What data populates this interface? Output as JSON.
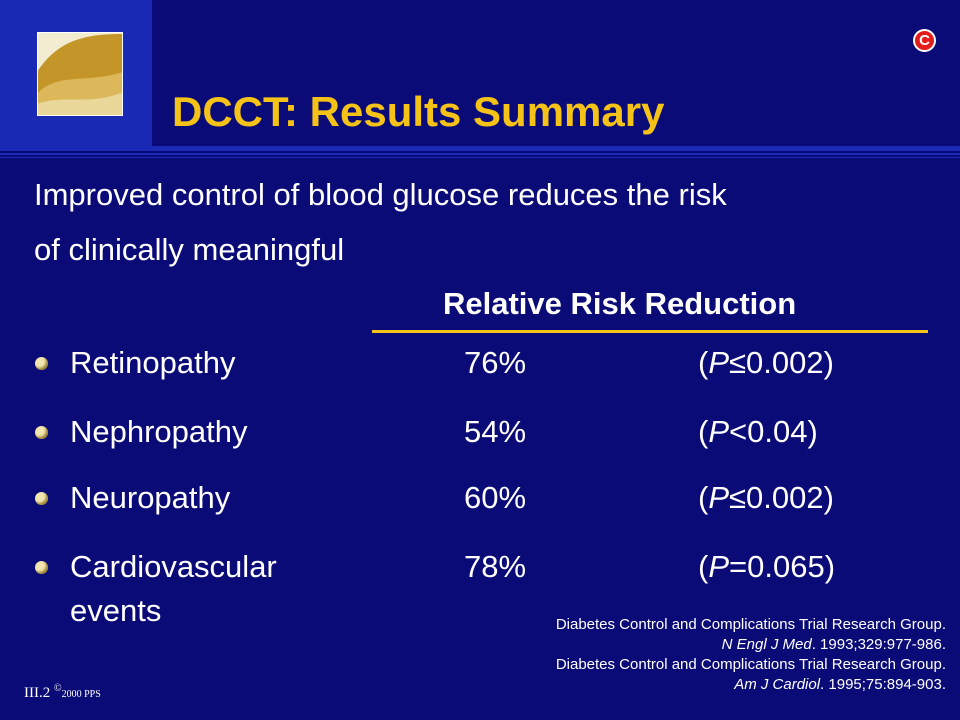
{
  "title": "DCCT: Results Summary",
  "badge": "C",
  "intro": {
    "line1": "Improved control of blood glucose reduces the risk",
    "line2": "of clinically meaningful"
  },
  "column_header": "Relative Risk Reduction",
  "rows": [
    {
      "label": "Retinopathy",
      "label2": "",
      "reduction": "76%",
      "p_open": "(",
      "p_letter": "P",
      "p_rest": "≤0.002)"
    },
    {
      "label": "Nephropathy",
      "label2": "",
      "reduction": "54%",
      "p_open": "(",
      "p_letter": "P",
      "p_rest": "<0.04)"
    },
    {
      "label": "Neuropathy",
      "label2": "",
      "reduction": "60%",
      "p_open": "(",
      "p_letter": "P",
      "p_rest": "≤0.002)"
    },
    {
      "label": "Cardiovascular",
      "label2": "events",
      "reduction": "78%",
      "p_open": "(",
      "p_letter": "P",
      "p_rest": "=0.065)"
    }
  ],
  "references": [
    {
      "line1": "Diabetes Control and Complications Trial Research Group.",
      "journal": "N Engl J Med",
      "citation": ". 1993;329:977-986."
    },
    {
      "line1": "Diabetes Control and Complications Trial Research Group.",
      "journal": "Am J Cardiol",
      "citation": ". 1995;75:894-903."
    }
  ],
  "footer": {
    "slide_number": "III.2 ",
    "copyright_symbol": "©",
    "year_org": "2000 PPS"
  },
  "colors": {
    "background": "#0b0b78",
    "accent_yellow": "#f5c217",
    "panel_blue": "#1a2ab4",
    "badge_red": "#e41c1c"
  }
}
